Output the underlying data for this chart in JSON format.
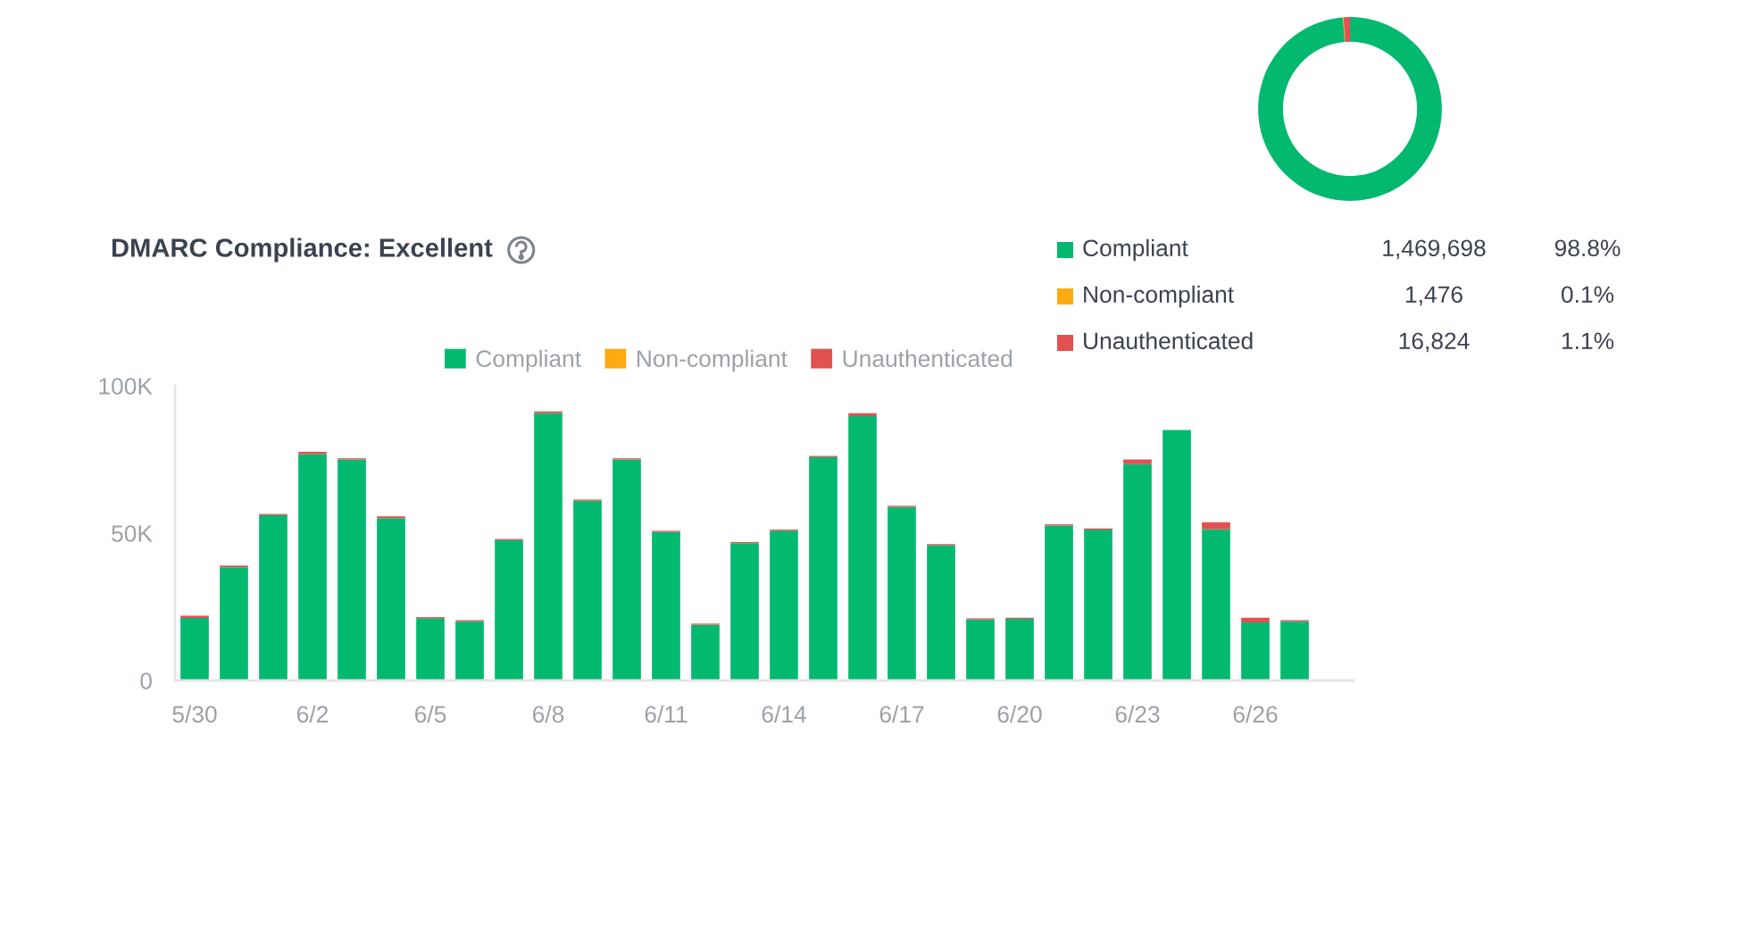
{
  "chart_data": [
    {
      "type": "donut",
      "legend": "bottom",
      "categories": [
        "Compliant",
        "Non-compliant",
        "Unauthenticated"
      ],
      "values": [
        1469698,
        1476,
        16824
      ],
      "colors": [
        "#03b970",
        "#fdab10",
        "#e0514f"
      ],
      "value_labels": [
        "1,469,698",
        "1,476",
        "16,824"
      ],
      "annotations": [
        "98.8%",
        "0.1%",
        "1.1%"
      ]
    },
    {
      "type": "bar",
      "title": "DMARC Compliance: Excellent",
      "stacked": true,
      "legend": "top",
      "categories": [
        "5/30",
        null,
        null,
        "6/2",
        null,
        null,
        "6/5",
        null,
        null,
        "6/8",
        null,
        null,
        "6/11",
        null,
        null,
        "6/14",
        null,
        null,
        "6/17",
        null,
        null,
        "6/20",
        null,
        null,
        "6/23",
        null,
        null,
        "6/26",
        null
      ],
      "series": [
        {
          "name": "Compliant",
          "color": "#03b970",
          "values": [
            21200,
            38400,
            56100,
            76800,
            75000,
            55100,
            21100,
            20100,
            47600,
            90700,
            61000,
            75000,
            50400,
            18900,
            46600,
            50800,
            75800,
            89700,
            58900,
            45900,
            20700,
            20900,
            52600,
            51200,
            73400,
            85000,
            51300,
            19700,
            20100
          ]
        },
        {
          "name": "Non-compliant",
          "color": "#fdab10",
          "values": [
            0,
            0,
            0,
            0,
            0,
            0,
            0,
            0,
            0,
            0,
            0,
            0,
            0,
            0,
            0,
            0,
            0,
            0,
            0,
            0,
            0,
            0,
            0,
            0,
            0,
            0,
            0,
            0,
            0
          ]
        },
        {
          "name": "Unauthenticated",
          "color": "#e0514f",
          "values": [
            800,
            600,
            400,
            800,
            400,
            600,
            400,
            400,
            400,
            600,
            400,
            400,
            400,
            400,
            400,
            400,
            400,
            1000,
            400,
            400,
            400,
            400,
            400,
            400,
            1600,
            null,
            2400,
            1600,
            400
          ]
        }
      ],
      "ylim": [
        0,
        100000
      ],
      "yticks": [
        0,
        {
          "value": 50000,
          "label": "50K"
        },
        {
          "value": 100000,
          "label": "100K"
        }
      ]
    }
  ]
}
